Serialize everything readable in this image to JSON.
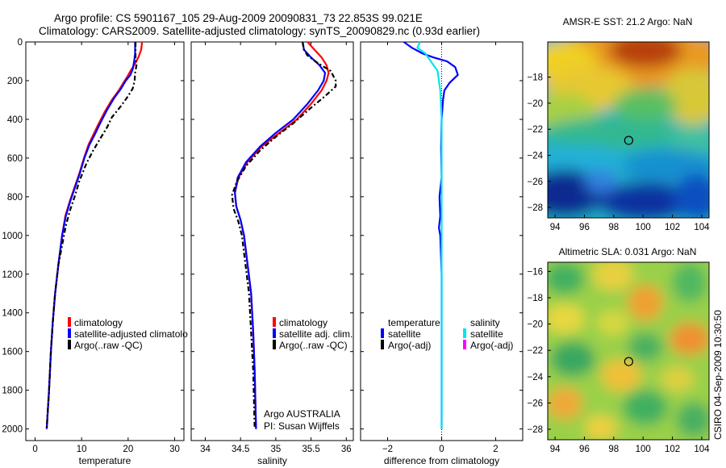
{
  "header": {
    "line1": "Argo profile: CS 5901167_105 29-Aug-2009 20090831_73 22.853S 99.021E",
    "line2": "Climatology: CARS2009. Satellite-adjusted climatology: synTS_20090829.nc (0.93d earlier)"
  },
  "credit": "CSIRO 04-Sep-2009 10:30:50",
  "colors": {
    "climatology": "#ff0000",
    "satellite": "#0000ff",
    "argo": "#000000",
    "salinity_satellite": "#00e5ee",
    "salinity_argo": "#ff00ff"
  },
  "chart_data": [
    {
      "type": "line",
      "panel": "temperature",
      "xlabel": "temperature",
      "ylabel": "",
      "xlim": [
        -2,
        32
      ],
      "ylim": [
        2060,
        0
      ],
      "y_reversed": true,
      "xticks": [
        0,
        10,
        20,
        30
      ],
      "yticks": [
        0,
        200,
        400,
        600,
        800,
        1000,
        1200,
        1400,
        1600,
        1800,
        2000
      ],
      "legend": [
        "climatology",
        "satellite-adjusted climatolo",
        "Argo(..raw -QC)"
      ],
      "series": [
        {
          "name": "climatology",
          "color": "#ff0000",
          "dash": "none",
          "points": [
            [
              23,
              0
            ],
            [
              22.8,
              40
            ],
            [
              22.2,
              80
            ],
            [
              21.3,
              120
            ],
            [
              20.5,
              150
            ],
            [
              19.8,
              180
            ],
            [
              19,
              210
            ],
            [
              18,
              250
            ],
            [
              16.5,
              300
            ],
            [
              15,
              360
            ],
            [
              13.5,
              430
            ],
            [
              12.5,
              480
            ],
            [
              11.5,
              530
            ],
            [
              10.5,
              600
            ],
            [
              9.5,
              680
            ],
            [
              8.5,
              750
            ],
            [
              7.5,
              820
            ],
            [
              6.5,
              900
            ],
            [
              5.8,
              1000
            ],
            [
              5,
              1150
            ],
            [
              4.3,
              1300
            ],
            [
              3.8,
              1450
            ],
            [
              3.4,
              1600
            ],
            [
              3,
              1800
            ],
            [
              2.5,
              2000
            ]
          ]
        },
        {
          "name": "satellite-adjusted climatology",
          "color": "#0000ff",
          "dash": "none",
          "points": [
            [
              21.5,
              0
            ],
            [
              21.5,
              60
            ],
            [
              21.3,
              100
            ],
            [
              21,
              140
            ],
            [
              20.5,
              170
            ],
            [
              19.5,
              200
            ],
            [
              18.5,
              240
            ],
            [
              17,
              290
            ],
            [
              15.5,
              350
            ],
            [
              14,
              420
            ],
            [
              12.8,
              480
            ],
            [
              11.7,
              530
            ],
            [
              10.6,
              600
            ],
            [
              9.6,
              680
            ],
            [
              8.6,
              750
            ],
            [
              7.6,
              820
            ],
            [
              6.6,
              900
            ],
            [
              5.8,
              1000
            ],
            [
              5,
              1150
            ],
            [
              4.3,
              1300
            ],
            [
              3.8,
              1450
            ],
            [
              3.4,
              1600
            ],
            [
              3,
              1800
            ],
            [
              2.5,
              2000
            ]
          ]
        },
        {
          "name": "Argo(..raw -QC)",
          "color": "#000000",
          "dash": "6,3,2,3",
          "points": [
            [
              21.6,
              0
            ],
            [
              21.6,
              80
            ],
            [
              21.8,
              120
            ],
            [
              21.5,
              160
            ],
            [
              21.4,
              200
            ],
            [
              21,
              240
            ],
            [
              20,
              280
            ],
            [
              18.5,
              330
            ],
            [
              16.5,
              390
            ],
            [
              15.5,
              440
            ],
            [
              14,
              500
            ],
            [
              12.5,
              560
            ],
            [
              11,
              630
            ],
            [
              9.5,
              720
            ],
            [
              8.5,
              800
            ],
            [
              7.5,
              870
            ],
            [
              6.6,
              950
            ],
            [
              5.9,
              1040
            ],
            [
              5,
              1150
            ],
            [
              4.3,
              1300
            ],
            [
              3.8,
              1450
            ],
            [
              3.4,
              1600
            ],
            [
              3,
              1800
            ],
            [
              2.5,
              2000
            ]
          ]
        }
      ]
    },
    {
      "type": "line",
      "panel": "salinity",
      "xlabel": "salinity",
      "ylabel": "",
      "xlim": [
        33.8,
        36.1
      ],
      "ylim": [
        2060,
        0
      ],
      "y_reversed": true,
      "xticks": [
        34,
        34.5,
        35,
        35.5,
        36
      ],
      "yticks": [],
      "legend": [
        "climatology",
        "satellite adj. clim.",
        "Argo(..raw -QC)"
      ],
      "annotation": [
        "Argo AUSTRALIA",
        "PI: Susan Wijffels"
      ],
      "series": [
        {
          "name": "climatology",
          "color": "#ff0000",
          "dash": "none",
          "points": [
            [
              35.45,
              0
            ],
            [
              35.55,
              40
            ],
            [
              35.65,
              80
            ],
            [
              35.72,
              120
            ],
            [
              35.75,
              160
            ],
            [
              35.72,
              200
            ],
            [
              35.65,
              250
            ],
            [
              35.5,
              320
            ],
            [
              35.3,
              400
            ],
            [
              35.05,
              470
            ],
            [
              34.8,
              540
            ],
            [
              34.6,
              620
            ],
            [
              34.47,
              700
            ],
            [
              34.42,
              780
            ],
            [
              34.44,
              850
            ],
            [
              34.5,
              920
            ],
            [
              34.55,
              1000
            ],
            [
              34.6,
              1150
            ],
            [
              34.65,
              1300
            ],
            [
              34.68,
              1500
            ],
            [
              34.7,
              1700
            ],
            [
              34.72,
              2000
            ]
          ]
        },
        {
          "name": "satellite adj. clim.",
          "color": "#0000ff",
          "dash": "none",
          "points": [
            [
              35.38,
              0
            ],
            [
              35.4,
              40
            ],
            [
              35.5,
              80
            ],
            [
              35.62,
              120
            ],
            [
              35.7,
              160
            ],
            [
              35.68,
              200
            ],
            [
              35.6,
              250
            ],
            [
              35.45,
              320
            ],
            [
              35.25,
              400
            ],
            [
              35,
              470
            ],
            [
              34.78,
              540
            ],
            [
              34.58,
              620
            ],
            [
              34.46,
              700
            ],
            [
              34.42,
              780
            ],
            [
              34.44,
              850
            ],
            [
              34.5,
              920
            ],
            [
              34.55,
              1000
            ],
            [
              34.6,
              1150
            ],
            [
              34.65,
              1300
            ],
            [
              34.68,
              1500
            ],
            [
              34.7,
              1700
            ],
            [
              34.72,
              2000
            ]
          ]
        },
        {
          "name": "Argo(..raw -QC)",
          "color": "#000000",
          "dash": "6,3,2,3",
          "points": [
            [
              35.38,
              0
            ],
            [
              35.4,
              40
            ],
            [
              35.45,
              70
            ],
            [
              35.6,
              110
            ],
            [
              35.78,
              150
            ],
            [
              35.85,
              200
            ],
            [
              35.85,
              230
            ],
            [
              35.7,
              280
            ],
            [
              35.5,
              340
            ],
            [
              35.25,
              420
            ],
            [
              35,
              490
            ],
            [
              34.78,
              560
            ],
            [
              34.58,
              640
            ],
            [
              34.45,
              720
            ],
            [
              34.38,
              790
            ],
            [
              34.4,
              860
            ],
            [
              34.47,
              930
            ],
            [
              34.52,
              1000
            ],
            [
              34.57,
              1150
            ],
            [
              34.62,
              1300
            ],
            [
              34.65,
              1500
            ],
            [
              34.68,
              1700
            ],
            [
              34.7,
              2000
            ]
          ]
        }
      ]
    },
    {
      "type": "line",
      "panel": "difference",
      "xlabel": "difference from climatology",
      "ylabel": "",
      "xlim": [
        -3,
        3
      ],
      "ylim": [
        2060,
        0
      ],
      "y_reversed": true,
      "xticks": [
        -2,
        0,
        2
      ],
      "yticks": [],
      "zero_line": true,
      "legend_temperature_header": "temperature",
      "legend_salinity_header": "salinity",
      "legend_temperature": [
        "satellite",
        "Argo(-adj)"
      ],
      "legend_salinity": [
        "satellite",
        "Argo(-adj)"
      ],
      "series": [
        {
          "name": "temperature satellite",
          "color": "#0000ff",
          "dash": "none",
          "points": [
            [
              -1.4,
              0
            ],
            [
              -1.1,
              30
            ],
            [
              -0.7,
              60
            ],
            [
              -0.3,
              80
            ],
            [
              0.2,
              100
            ],
            [
              0.5,
              130
            ],
            [
              0.6,
              170
            ],
            [
              0.3,
              210
            ],
            [
              0.1,
              250
            ],
            [
              0.05,
              300
            ],
            [
              0,
              400
            ],
            [
              -0.02,
              550
            ],
            [
              0,
              700
            ],
            [
              -0.08,
              800
            ],
            [
              -0.05,
              900
            ],
            [
              -0.1,
              960
            ],
            [
              -0.05,
              1000
            ],
            [
              0,
              1200
            ],
            [
              0,
              1500
            ],
            [
              0,
              1800
            ],
            [
              0,
              2000
            ]
          ]
        },
        {
          "name": "salinity satellite",
          "color": "#00e5ee",
          "dash": "none",
          "points": [
            [
              -0.8,
              0
            ],
            [
              -0.9,
              30
            ],
            [
              -0.6,
              60
            ],
            [
              -0.4,
              100
            ],
            [
              -0.15,
              150
            ],
            [
              -0.05,
              250
            ],
            [
              0,
              400
            ],
            [
              0,
              600
            ],
            [
              0,
              800
            ],
            [
              0,
              1000
            ],
            [
              0,
              1200
            ],
            [
              0,
              1500
            ],
            [
              0,
              1800
            ],
            [
              0,
              2000
            ]
          ]
        }
      ]
    },
    {
      "type": "heatmap",
      "panel": "sst-map",
      "title": "AMSR-E SST: 21.2 Argo: NaN",
      "xlim": [
        93.5,
        104.5
      ],
      "ylim": [
        -28.8,
        -15.3
      ],
      "xticks": [
        94,
        96,
        98,
        100,
        102,
        104
      ],
      "yticks": [
        -18,
        -20,
        -22,
        -24,
        -26,
        -28
      ],
      "marker": {
        "lon": 99.021,
        "lat": -22.853
      }
    },
    {
      "type": "heatmap",
      "panel": "sla-map",
      "title": "Altimetric SLA: 0.031 Argo: NaN",
      "xlim": [
        93.5,
        104.5
      ],
      "ylim": [
        -28.8,
        -15.3
      ],
      "xticks": [
        94,
        96,
        98,
        100,
        102,
        104
      ],
      "yticks": [
        -16,
        -18,
        -20,
        -22,
        -24,
        -26,
        -28
      ],
      "marker": {
        "lon": 99.021,
        "lat": -22.853
      }
    }
  ]
}
